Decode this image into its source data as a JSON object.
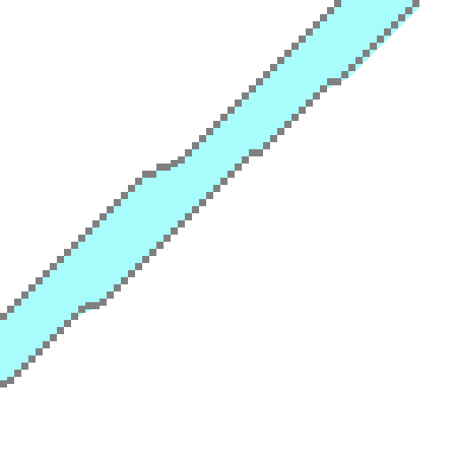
{
  "icon": "pixel-diagonal-stripe",
  "colors": {
    "background": "#ffffff",
    "stripe_fill": "#a8fcfc",
    "stripe_edge": "#808080"
  }
}
